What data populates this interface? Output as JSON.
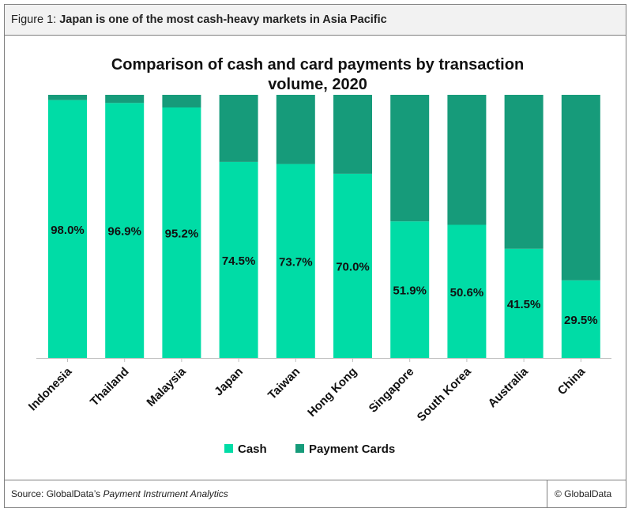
{
  "figure": {
    "number": "Figure 1:",
    "title": "Japan is one of the most cash-heavy markets in Asia Pacific"
  },
  "footer": {
    "source_prefix": "Source: GlobalData’s ",
    "source_name": "Payment Instrument Analytics",
    "copyright": "© GlobalData"
  },
  "colors": {
    "cash": "#00dca6",
    "payment_cards": "#169b7a"
  },
  "chart_data": {
    "type": "bar",
    "stacked": true,
    "title_lines": [
      "Comparison of cash and card payments by transaction",
      "volume, 2020"
    ],
    "categories": [
      "Indonesia",
      "Thailand",
      "Malaysia",
      "Japan",
      "Taiwan",
      "Hong Kong",
      "Singapore",
      "South Korea",
      "Australia",
      "China"
    ],
    "series": [
      {
        "name": "Cash",
        "values": [
          98.0,
          96.9,
          95.2,
          74.5,
          73.7,
          70.0,
          51.9,
          50.6,
          41.5,
          29.5
        ]
      },
      {
        "name": "Payment Cards",
        "values": [
          2.0,
          3.1,
          4.8,
          25.5,
          26.3,
          30.0,
          48.1,
          49.4,
          58.5,
          70.5
        ]
      }
    ],
    "data_labels": [
      "98.0%",
      "96.9%",
      "95.2%",
      "74.5%",
      "73.7%",
      "70.0%",
      "51.9%",
      "50.6%",
      "41.5%",
      "29.5%"
    ],
    "ylim": [
      0,
      100
    ],
    "grid": false,
    "legend": "bottom"
  }
}
